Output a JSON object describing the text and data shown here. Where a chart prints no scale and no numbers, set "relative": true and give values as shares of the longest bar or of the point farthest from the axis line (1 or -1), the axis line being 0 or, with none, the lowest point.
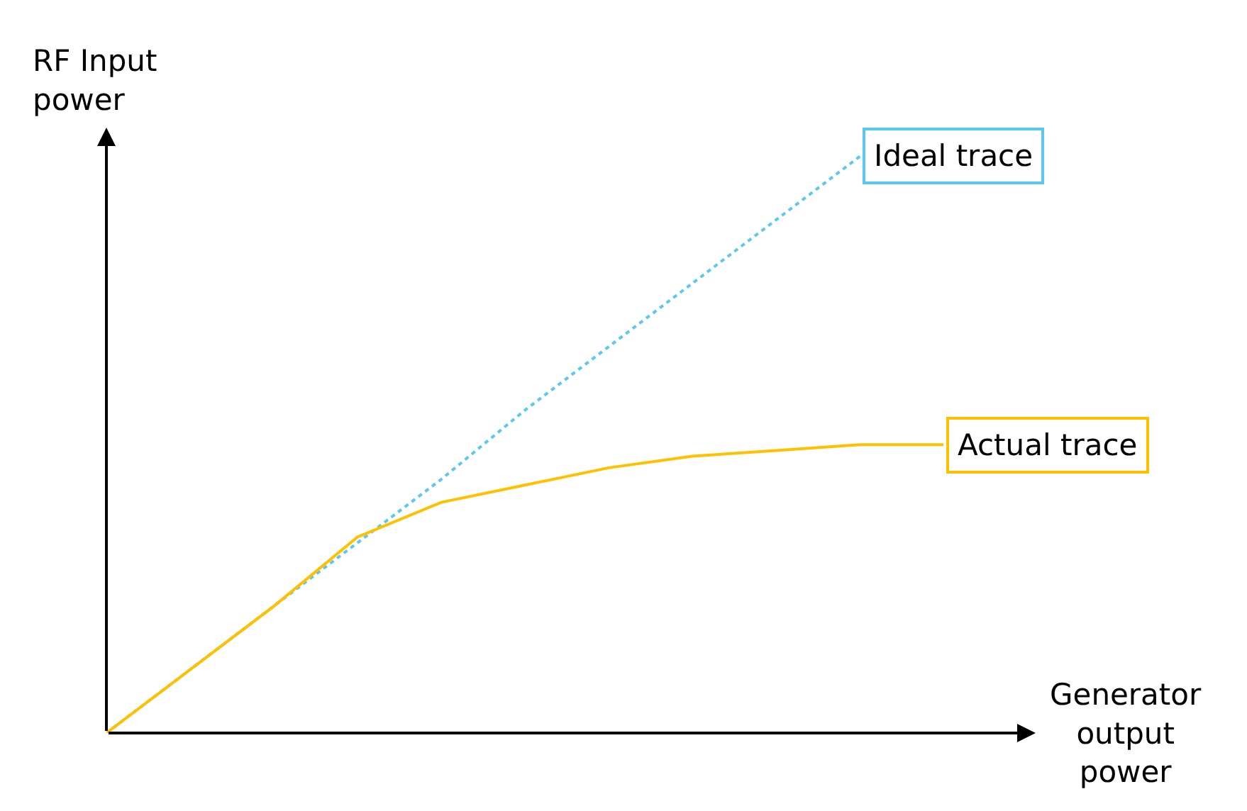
{
  "chart_data": {
    "type": "line",
    "relative": true,
    "xlabel": "Generator output power",
    "ylabel": "RF Input power",
    "categories": [
      null,
      null,
      null,
      null,
      null,
      null,
      null,
      null,
      null,
      null,
      null
    ],
    "series": [
      {
        "name": "Ideal trace",
        "color": "#5bc8ee",
        "line_style": "dotted",
        "values": [
          0,
          0.11,
          0.22,
          0.33,
          0.44,
          0.56,
          0.67,
          0.78,
          0.89,
          1,
          null
        ]
      },
      {
        "name": "Actual trace",
        "color": "#ffc000",
        "line_style": "solid",
        "values": [
          0,
          0.11,
          0.22,
          0.34,
          0.4,
          0.43,
          0.46,
          0.48,
          0.49,
          0.5,
          0.5
        ]
      }
    ],
    "legend": false,
    "marker": "none"
  }
}
